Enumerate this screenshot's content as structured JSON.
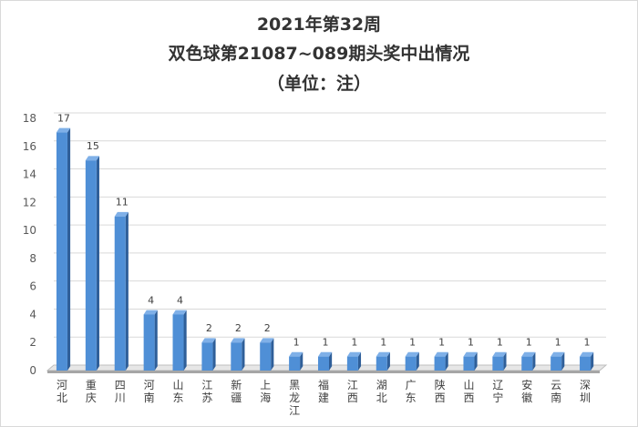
{
  "chart_data": {
    "type": "bar",
    "title_lines": [
      "2021年第32周",
      "双色球第21087~089期头奖中出情况",
      "（单位：注）"
    ],
    "categories": [
      "河北",
      "重庆",
      "四川",
      "河南",
      "山东",
      "江苏",
      "新疆",
      "上海",
      "黑龙江",
      "福建",
      "江西",
      "湖北",
      "广东",
      "陕西",
      "山西",
      "辽宁",
      "安徽",
      "云南",
      "深圳"
    ],
    "values": [
      17,
      15,
      11,
      4,
      4,
      2,
      2,
      2,
      1,
      1,
      1,
      1,
      1,
      1,
      1,
      1,
      1,
      1,
      1
    ],
    "ylim": [
      0,
      18
    ],
    "yticks": [
      "0",
      "2",
      "4",
      "6",
      "8",
      "10",
      "12",
      "14",
      "16",
      "18"
    ],
    "xlabel": "",
    "ylabel": "",
    "grid": true,
    "bar_color": "#4f8fd6",
    "bar_side_color": "#2f5f99",
    "bar_top_color": "#7fb0e8",
    "floor_color": "#bfbfbf"
  }
}
